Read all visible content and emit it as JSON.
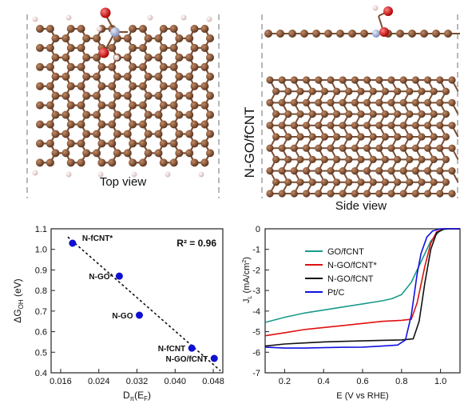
{
  "colors": {
    "carbon": "#8a5a3c",
    "carbon_dark": "#5a3520",
    "bond": "#7a4e34",
    "hydrogen": "#f0d6d6",
    "nitrogen": "#a8b4d8",
    "oxygen": "#d01010",
    "dash": "#888888"
  },
  "top_panels": {
    "top_view_label": "Top view",
    "side_view_label": "Side view",
    "structure_label": "N-GO/fCNT"
  },
  "chart_data": [
    {
      "type": "scatter",
      "title": "",
      "xlabel": "Dπ(EF)",
      "xlabel_main": "D",
      "xlabel_sub": "π",
      "xlabel_tail": "(E",
      "xlabel_sub2": "F",
      "xlabel_end": ")",
      "ylabel": "ΔGOH (eV)",
      "ylabel_main": "ΔG",
      "ylabel_sub": "OH",
      "ylabel_tail": " (eV)",
      "xlim": [
        0.014,
        0.05
      ],
      "ylim": [
        0.4,
        1.1
      ],
      "xticks": [
        "0.016",
        "0.024",
        "0.032",
        "0.040",
        "0.048"
      ],
      "xtick_values": [
        0.016,
        0.024,
        0.032,
        0.04,
        0.048
      ],
      "yticks": [
        "0.4",
        "0.5",
        "0.6",
        "0.7",
        "0.8",
        "0.9",
        "1.0",
        "1.1"
      ],
      "ytick_values": [
        0.4,
        0.5,
        0.6,
        0.7,
        0.8,
        0.9,
        1.0,
        1.1
      ],
      "annotation": "R² = 0.96",
      "points": [
        {
          "label": "N-fCNT*",
          "x": 0.0185,
          "y": 1.03,
          "label_dx": 1
        },
        {
          "label": "N-GO*",
          "x": 0.0283,
          "y": 0.87,
          "label_dx": -1
        },
        {
          "label": "N-GO",
          "x": 0.0325,
          "y": 0.68,
          "label_dx": -1
        },
        {
          "label": "N-fCNT",
          "x": 0.0435,
          "y": 0.52,
          "label_dx": -1
        },
        {
          "label": "N-GO/fCNT",
          "x": 0.0482,
          "y": 0.47,
          "label_dx": -1
        }
      ],
      "fit": {
        "x": [
          0.0175,
          0.0495
        ],
        "y": [
          1.06,
          0.41
        ]
      },
      "point_color": "#1010d0"
    },
    {
      "type": "line",
      "title": "",
      "xlabel": "E (V vs RHE)",
      "ylabel": "J (mA/cm²)",
      "ylabel_main": "J",
      "ylabel_sub": "L",
      "ylabel_tail": " (mA/cm",
      "ylabel_sup": "2",
      "ylabel_end": ")",
      "xlim": [
        0.1,
        1.1
      ],
      "ylim": [
        -7,
        0
      ],
      "xticks": [
        "0.2",
        "0.4",
        "0.6",
        "0.8",
        "1.0"
      ],
      "xtick_values": [
        0.2,
        0.4,
        0.6,
        0.8,
        1.0
      ],
      "yticks": [
        "0",
        "-1",
        "-2",
        "-3",
        "-4",
        "-5",
        "-6",
        "-7"
      ],
      "ytick_values": [
        0,
        -1,
        -2,
        -3,
        -4,
        -5,
        -6,
        -7
      ],
      "legend_position": "upper-left",
      "series": [
        {
          "name": "GO/fCNT",
          "color": "#1a9a8a",
          "x": [
            0.1,
            0.2,
            0.3,
            0.4,
            0.5,
            0.6,
            0.7,
            0.75,
            0.8,
            0.85,
            0.9,
            0.95,
            1.0,
            1.05,
            1.1
          ],
          "y": [
            -4.55,
            -4.3,
            -4.1,
            -3.95,
            -3.8,
            -3.65,
            -3.5,
            -3.4,
            -3.2,
            -2.6,
            -1.6,
            -0.6,
            -0.05,
            0,
            0
          ]
        },
        {
          "name": "N-GO/fCNT*",
          "color": "#e01010",
          "x": [
            0.1,
            0.2,
            0.3,
            0.4,
            0.5,
            0.6,
            0.7,
            0.8,
            0.85,
            0.88,
            0.92,
            0.95,
            0.98,
            1.02,
            1.1
          ],
          "y": [
            -5.2,
            -5.05,
            -4.9,
            -4.8,
            -4.7,
            -4.6,
            -4.5,
            -4.45,
            -4.4,
            -3.6,
            -1.8,
            -0.7,
            -0.15,
            0,
            0
          ]
        },
        {
          "name": "N-GO/fCNT",
          "color": "#111111",
          "x": [
            0.1,
            0.2,
            0.3,
            0.4,
            0.5,
            0.6,
            0.7,
            0.8,
            0.86,
            0.89,
            0.92,
            0.95,
            0.98,
            1.02,
            1.1
          ],
          "y": [
            -5.7,
            -5.6,
            -5.55,
            -5.5,
            -5.47,
            -5.45,
            -5.42,
            -5.4,
            -5.35,
            -4.5,
            -2.6,
            -1.0,
            -0.2,
            0,
            0
          ]
        },
        {
          "name": "Pt/C",
          "color": "#1010e0",
          "x": [
            0.1,
            0.2,
            0.3,
            0.4,
            0.5,
            0.6,
            0.7,
            0.78,
            0.82,
            0.85,
            0.88,
            0.9,
            0.93,
            0.96,
            1.0,
            1.1
          ],
          "y": [
            -5.75,
            -5.8,
            -5.8,
            -5.78,
            -5.76,
            -5.75,
            -5.7,
            -5.65,
            -5.4,
            -4.2,
            -2.2,
            -1.2,
            -0.4,
            -0.1,
            0,
            0
          ]
        }
      ]
    }
  ]
}
